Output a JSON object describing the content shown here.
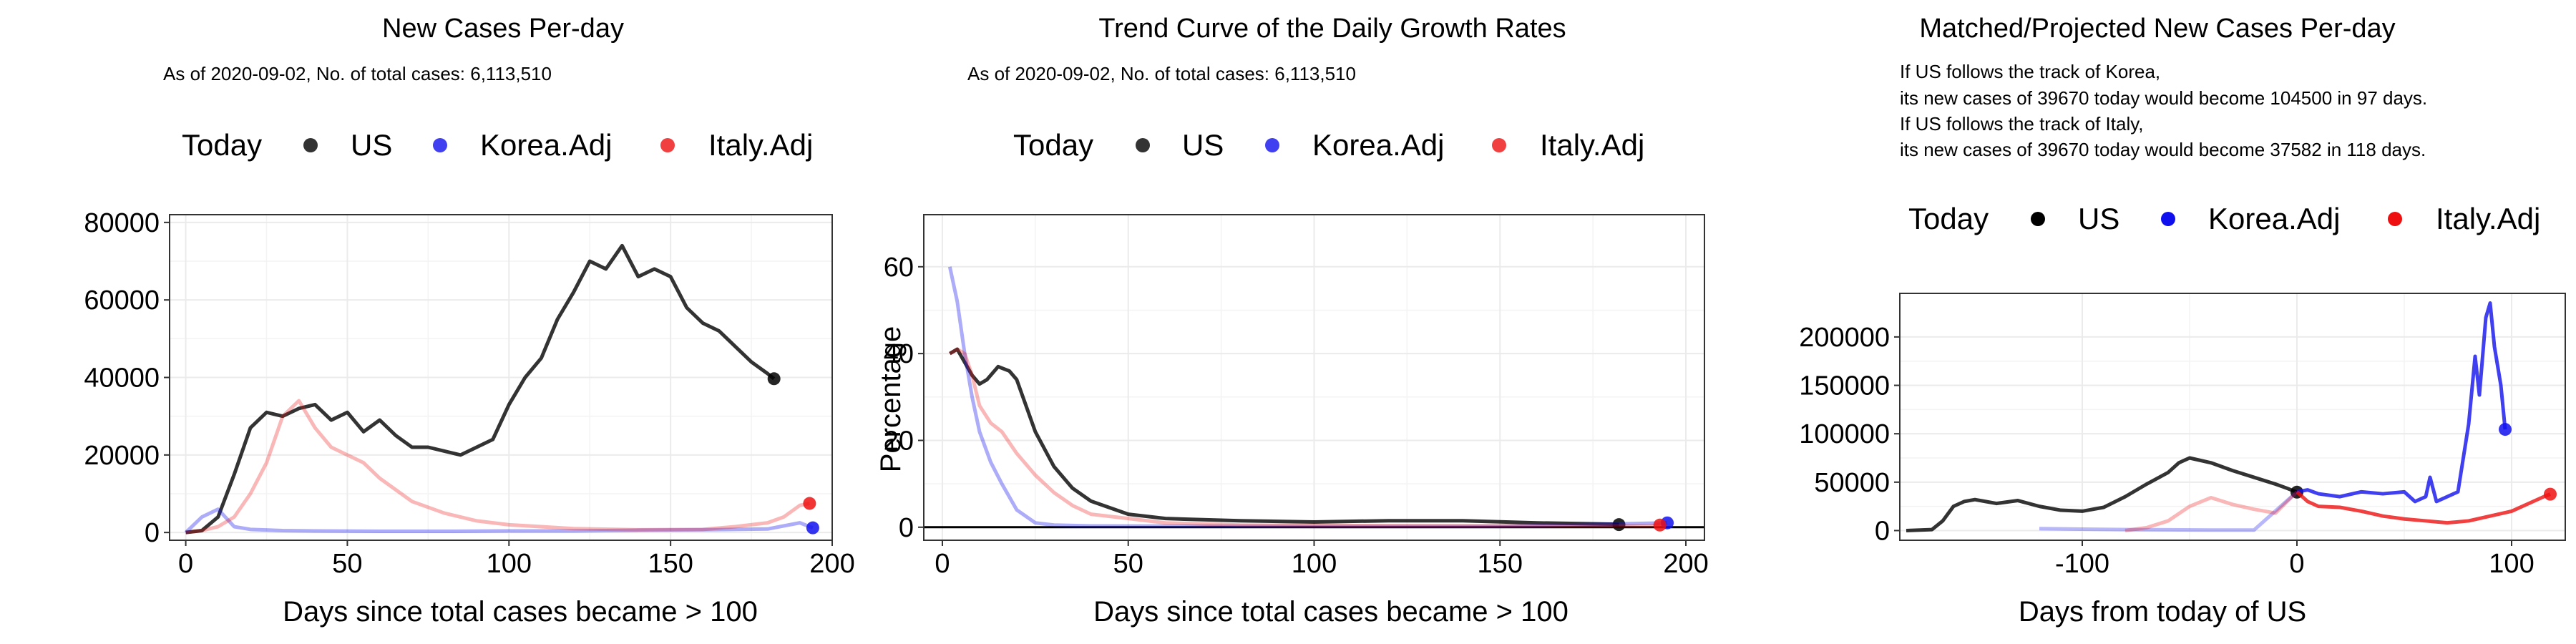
{
  "legend": {
    "title": "Today",
    "items": [
      "US",
      "Korea.Adj",
      "Italy.Adj"
    ]
  },
  "colors": {
    "US": "#000000",
    "Korea": "#1010ee",
    "Italy": "#ee1010",
    "grid": "#ebebeb",
    "frame": "#333333"
  },
  "panels": {
    "p1": {
      "title": "New Cases Per-day",
      "subtitle": "As of 2020-09-02, No. of total cases: 6,113,510",
      "xlabel": "Days since total cases became > 100",
      "ylabel": "",
      "xticks": [
        "0",
        "50",
        "100",
        "150",
        "200"
      ],
      "yticks": [
        "0",
        "20000",
        "40000",
        "60000",
        "80000"
      ]
    },
    "p2": {
      "title": "Trend Curve of the Daily Growth Rates",
      "subtitle": "As of 2020-09-02, No. of total cases: 6,113,510",
      "xlabel": "Days since total cases became > 100",
      "ylabel": "Percentage",
      "xticks": [
        "0",
        "50",
        "100",
        "150",
        "200"
      ],
      "yticks": [
        "0",
        "20",
        "40",
        "60"
      ]
    },
    "p3": {
      "title": "Matched/Projected New Cases Per-day",
      "notes": [
        "If US follows the track of Korea,",
        "its new cases of 39670 today would become 104500 in 97 days.",
        "If US follows the track of Italy,",
        "its new cases of 39670 today would become 37582 in 118 days."
      ],
      "xlabel": "Days from today of US",
      "ylabel": "",
      "xticks": [
        "-100",
        "0",
        "100"
      ],
      "yticks": [
        "0",
        "50000",
        "100000",
        "150000",
        "200000"
      ]
    }
  },
  "chart_data": [
    {
      "type": "line",
      "title": "New Cases Per-day",
      "xlabel": "Days since total cases became > 100",
      "xlim": [
        -5,
        200
      ],
      "ylim": [
        -2000,
        82000
      ],
      "series": [
        {
          "name": "US",
          "x": [
            0,
            5,
            10,
            15,
            20,
            25,
            30,
            35,
            40,
            45,
            50,
            55,
            60,
            65,
            70,
            75,
            80,
            85,
            90,
            95,
            100,
            105,
            110,
            115,
            120,
            125,
            130,
            135,
            140,
            145,
            150,
            155,
            160,
            165,
            170,
            175,
            180,
            182
          ],
          "values": [
            0,
            500,
            4000,
            15000,
            27000,
            31000,
            30000,
            32000,
            33000,
            29000,
            31000,
            26000,
            29000,
            25000,
            22000,
            22000,
            21000,
            20000,
            22000,
            24000,
            33000,
            40000,
            45000,
            55000,
            62000,
            70000,
            68000,
            74000,
            66000,
            68000,
            66000,
            58000,
            54000,
            52000,
            48000,
            44000,
            41000,
            39670
          ]
        },
        {
          "name": "Korea.Adj",
          "x": [
            0,
            5,
            10,
            15,
            20,
            30,
            40,
            60,
            80,
            100,
            120,
            140,
            160,
            180,
            190,
            194
          ],
          "values": [
            0,
            4000,
            6000,
            1500,
            800,
            500,
            400,
            300,
            300,
            400,
            400,
            600,
            700,
            900,
            2500,
            1200
          ]
        },
        {
          "name": "Italy.Adj",
          "x": [
            0,
            5,
            10,
            15,
            20,
            25,
            30,
            35,
            40,
            45,
            50,
            55,
            60,
            65,
            70,
            80,
            90,
            100,
            120,
            140,
            160,
            170,
            180,
            185,
            190,
            193
          ],
          "values": [
            0,
            500,
            1500,
            4000,
            10000,
            18000,
            30000,
            34000,
            27000,
            22000,
            20000,
            18000,
            14000,
            11000,
            8000,
            5000,
            3000,
            2000,
            1000,
            700,
            800,
            1500,
            2500,
            4000,
            7000,
            7500
          ]
        }
      ]
    },
    {
      "type": "line",
      "title": "Trend Curve of the Daily Growth Rates",
      "xlabel": "Days since total cases became > 100",
      "ylabel": "Percentage",
      "xlim": [
        -5,
        205
      ],
      "ylim": [
        -3,
        72
      ],
      "series": [
        {
          "name": "US",
          "x": [
            2,
            4,
            6,
            8,
            10,
            12,
            15,
            18,
            20,
            25,
            30,
            35,
            40,
            50,
            60,
            80,
            100,
            120,
            140,
            160,
            180,
            182
          ],
          "values": [
            40,
            41,
            38,
            35,
            33,
            34,
            37,
            36,
            34,
            22,
            14,
            9,
            6,
            3,
            2,
            1.5,
            1.2,
            1.5,
            1.5,
            1.0,
            0.7,
            0.6
          ]
        },
        {
          "name": "Korea.Adj",
          "x": [
            2,
            4,
            6,
            8,
            10,
            13,
            16,
            20,
            25,
            30,
            40,
            100,
            150,
            195
          ],
          "values": [
            60,
            52,
            40,
            30,
            22,
            15,
            10,
            4,
            1,
            0.5,
            0.3,
            0.2,
            0.2,
            1
          ]
        },
        {
          "name": "Italy.Adj",
          "x": [
            2,
            4,
            6,
            8,
            10,
            13,
            16,
            20,
            25,
            30,
            35,
            40,
            50,
            60,
            80,
            100,
            150,
            190,
            193
          ],
          "values": [
            40,
            41,
            40,
            35,
            28,
            24,
            22,
            17,
            12,
            8,
            5,
            3,
            2,
            1,
            0.5,
            0.4,
            0.3,
            0.3,
            0.5
          ]
        }
      ]
    },
    {
      "type": "line",
      "title": "Matched/Projected New Cases Per-day",
      "xlabel": "Days from today of US",
      "xlim": [
        -185,
        125
      ],
      "ylim": [
        -10000,
        245000
      ],
      "series": [
        {
          "name": "US",
          "x": [
            -182,
            -170,
            -165,
            -160,
            -155,
            -150,
            -145,
            -140,
            -130,
            -120,
            -110,
            -100,
            -90,
            -80,
            -70,
            -60,
            -55,
            -50,
            -40,
            -30,
            -20,
            -10,
            -5,
            0
          ],
          "values": [
            0,
            1000,
            10000,
            25000,
            30000,
            32000,
            30000,
            28000,
            31000,
            25000,
            21000,
            20000,
            24000,
            35000,
            48000,
            60000,
            70000,
            75000,
            70000,
            62000,
            55000,
            48000,
            44000,
            39670
          ]
        },
        {
          "name": "Korea.Adj",
          "x": [
            -120,
            -100,
            -80,
            -60,
            -40,
            -20,
            0,
            5,
            10,
            20,
            30,
            40,
            50,
            55,
            60,
            62,
            65,
            70,
            75,
            80,
            83,
            85,
            88,
            90,
            92,
            95,
            97
          ],
          "values": [
            2000,
            1500,
            1000,
            800,
            500,
            500,
            40000,
            42000,
            38000,
            35000,
            40000,
            38000,
            40000,
            30000,
            35000,
            55000,
            30000,
            35000,
            40000,
            110000,
            180000,
            140000,
            220000,
            235000,
            190000,
            150000,
            104500
          ]
        },
        {
          "name": "Italy.Adj",
          "x": [
            -80,
            -70,
            -60,
            -50,
            -40,
            -30,
            -20,
            -10,
            0,
            5,
            10,
            20,
            30,
            40,
            50,
            60,
            70,
            80,
            90,
            100,
            110,
            115,
            118
          ],
          "values": [
            0,
            3000,
            10000,
            25000,
            34000,
            27000,
            22000,
            18000,
            40000,
            30000,
            25000,
            24000,
            20000,
            15000,
            12000,
            10000,
            8000,
            10000,
            15000,
            20000,
            30000,
            35000,
            37582
          ]
        }
      ]
    }
  ]
}
